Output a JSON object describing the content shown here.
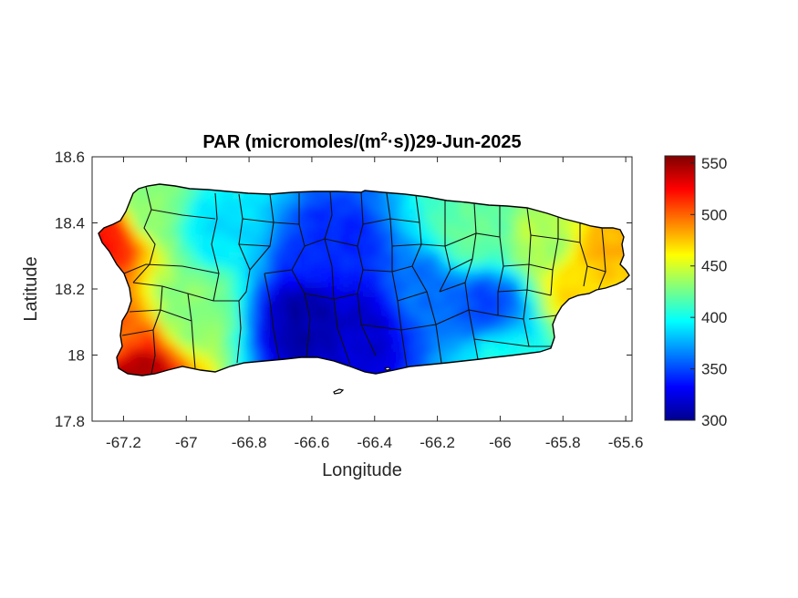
{
  "chart_data": {
    "type": "heatmap",
    "title_text": "PAR (micromoles/(m",
    "title_sup": "2",
    "title_rest": "·s))29-Jun-2025",
    "xlabel": "Longitude",
    "ylabel": "Latitude",
    "xlim": [
      -67.3,
      -65.58
    ],
    "ylim": [
      17.8,
      18.6
    ],
    "x_ticks": [
      -67.2,
      -67,
      -66.8,
      -66.6,
      -66.4,
      -66.2,
      -66,
      -65.8,
      -65.6
    ],
    "x_tick_labels": [
      "-67.2",
      "-67",
      "-66.8",
      "-66.6",
      "-66.4",
      "-66.2",
      "-66",
      "-65.8",
      "-65.6"
    ],
    "y_ticks": [
      17.8,
      18,
      18.2,
      18.4,
      18.6
    ],
    "y_tick_labels": [
      "17.8",
      "18",
      "18.2",
      "18.4",
      "18.6"
    ],
    "colorbar": {
      "colormap": "jet",
      "range": [
        300,
        557
      ],
      "ticks": [
        300,
        350,
        400,
        450,
        500,
        550
      ],
      "tick_labels": [
        "300",
        "350",
        "400",
        "450",
        "500",
        "550"
      ]
    },
    "region": "Puerto Rico",
    "field_samples": [
      {
        "lon": -67.18,
        "lat": 17.97,
        "value": 545
      },
      {
        "lon": -67.22,
        "lat": 18.05,
        "value": 500
      },
      {
        "lon": -67.26,
        "lat": 18.36,
        "value": 520
      },
      {
        "lon": -67.12,
        "lat": 18.45,
        "value": 430
      },
      {
        "lon": -67.0,
        "lat": 18.15,
        "value": 430
      },
      {
        "lon": -66.9,
        "lat": 18.4,
        "value": 390
      },
      {
        "lon": -66.62,
        "lat": 18.12,
        "value": 310
      },
      {
        "lon": -66.45,
        "lat": 18.08,
        "value": 320
      },
      {
        "lon": -66.55,
        "lat": 18.3,
        "value": 340
      },
      {
        "lon": -66.25,
        "lat": 18.2,
        "value": 360
      },
      {
        "lon": -66.05,
        "lat": 18.15,
        "value": 350
      },
      {
        "lon": -66.1,
        "lat": 18.38,
        "value": 420
      },
      {
        "lon": -65.85,
        "lat": 18.35,
        "value": 440
      },
      {
        "lon": -65.68,
        "lat": 18.33,
        "value": 480
      },
      {
        "lon": -65.75,
        "lat": 18.22,
        "value": 470
      },
      {
        "lon": -66.0,
        "lat": 18.0,
        "value": 400
      }
    ]
  }
}
